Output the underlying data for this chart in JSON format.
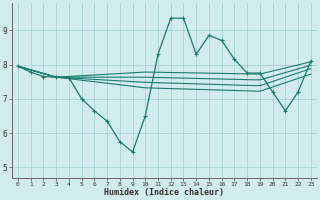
{
  "xlabel": "Humidex (Indice chaleur)",
  "xlim": [
    -0.5,
    23.5
  ],
  "ylim": [
    4.7,
    9.8
  ],
  "yticks": [
    5,
    6,
    7,
    8,
    9
  ],
  "xticks": [
    0,
    1,
    2,
    3,
    4,
    5,
    6,
    7,
    8,
    9,
    10,
    11,
    12,
    13,
    14,
    15,
    16,
    17,
    18,
    19,
    20,
    21,
    22,
    23
  ],
  "bg_color": "#d1ecec",
  "grid_color": "#a8d4d4",
  "line_color": "#1a7a6e",
  "main_line": {
    "x": [
      0,
      1,
      2,
      3,
      4,
      5,
      6,
      7,
      8,
      9,
      10,
      11,
      12,
      13,
      14,
      15,
      16,
      17,
      18,
      19,
      20,
      21,
      22,
      23
    ],
    "y": [
      7.95,
      7.78,
      7.65,
      7.63,
      7.62,
      7.0,
      6.65,
      6.35,
      5.75,
      5.45,
      6.5,
      8.3,
      9.35,
      9.35,
      8.3,
      8.85,
      8.7,
      8.15,
      7.75,
      7.75,
      7.2,
      6.65,
      7.2,
      8.1
    ]
  },
  "extra_lines": [
    {
      "x": [
        0,
        3,
        10,
        19,
        23
      ],
      "y": [
        7.95,
        7.63,
        7.78,
        7.72,
        8.08
      ]
    },
    {
      "x": [
        0,
        3,
        10,
        19,
        23
      ],
      "y": [
        7.95,
        7.63,
        7.63,
        7.55,
        7.98
      ]
    },
    {
      "x": [
        0,
        3,
        10,
        19,
        23
      ],
      "y": [
        7.95,
        7.63,
        7.48,
        7.38,
        7.88
      ]
    },
    {
      "x": [
        0,
        3,
        10,
        19,
        23
      ],
      "y": [
        7.95,
        7.63,
        7.32,
        7.22,
        7.72
      ]
    }
  ]
}
